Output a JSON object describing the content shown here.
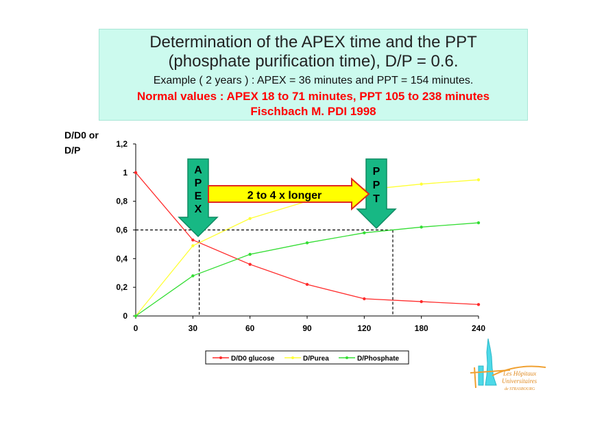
{
  "slide": {
    "title_line_1": "Determination of the APEX time and the PPT",
    "title_line_2": "(phosphate purification time), D/P = 0.6.",
    "example": "Example ( 2 years ) : APEX = 36 minutes and PPT = 154 minutes.",
    "normal_values": "Normal values  : APEX 18 to 71 minutes, PPT 105 to 238 minutes",
    "reference": "Fischbach M. PDI 1998"
  },
  "chart_data": {
    "type": "line",
    "ylabel_line_1": "D/D0 or",
    "ylabel_line_2": "D/P",
    "ylim": [
      0,
      1.2
    ],
    "y_ticks": [
      "0",
      "0,2",
      "0,4",
      "0,6",
      "0,8",
      "1",
      "1,2"
    ],
    "categories": [
      "0",
      "30",
      "60",
      "90",
      "120",
      "180",
      "240"
    ],
    "grid": false,
    "legend_position": "bottom",
    "series": [
      {
        "name": "D/D0 glucose",
        "color": "#ff2a2a",
        "values": [
          1.0,
          0.53,
          0.36,
          0.22,
          0.12,
          0.1,
          0.08
        ]
      },
      {
        "name": "D/Purea",
        "color": "#ffff33",
        "values": [
          0.0,
          0.49,
          0.68,
          0.8,
          0.88,
          0.92,
          0.95
        ]
      },
      {
        "name": "D/Phosphate",
        "color": "#33dd33",
        "values": [
          0.0,
          0.28,
          0.43,
          0.51,
          0.58,
          0.62,
          0.65
        ]
      }
    ],
    "threshold_value": 0.6,
    "apex_label": [
      "A",
      "P",
      "E",
      "X"
    ],
    "ppt_label": [
      "P",
      "P",
      "T"
    ],
    "annotation": "2 to 4 x longer"
  },
  "logo": {
    "line_1": "Les Hôpitaux",
    "line_2": "Universitaires",
    "line_3": "de STRASBOURG"
  }
}
